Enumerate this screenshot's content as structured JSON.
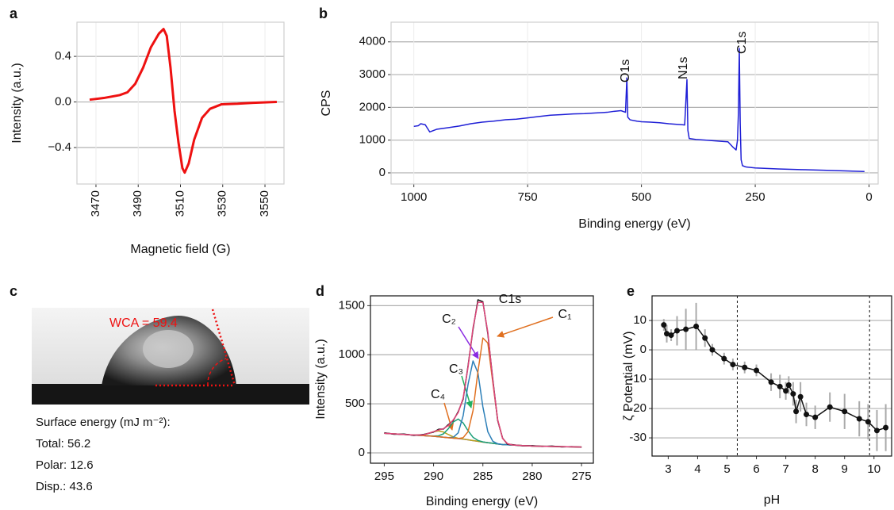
{
  "chart_data": [
    {
      "type": "line",
      "panel": "a",
      "y_label": "Intensity (a.u.)",
      "x_label": "Magnetic field (G)",
      "x": [
        3467.0,
        3473.7,
        3481.2,
        3484.9,
        3488.6,
        3492.3,
        3496.0,
        3499.8,
        3502.0,
        3503.5,
        3505.3,
        3507.2,
        3509.1,
        3510.9,
        3512.0,
        3513.9,
        3516.5,
        3520.2,
        3524.0,
        3529.5,
        3537.0,
        3544.4,
        3555.6
      ],
      "series": [
        {
          "color": "#ee1111",
          "values": [
            0.02,
            0.035,
            0.06,
            0.085,
            0.16,
            0.3,
            0.48,
            0.6,
            0.64,
            0.58,
            0.3,
            -0.08,
            -0.36,
            -0.58,
            -0.62,
            -0.54,
            -0.33,
            -0.14,
            -0.06,
            -0.02,
            -0.015,
            -0.007,
            0
          ]
        }
      ],
      "xlim": [
        3461,
        3559
      ],
      "xticks": [
        3470,
        3490,
        3510,
        3530,
        3550
      ],
      "xtick_rotation": 90,
      "ylim": [
        -0.72,
        0.7
      ],
      "yticks": [
        {
          "value": -0.4,
          "label": "−0.4"
        },
        {
          "value": 0,
          "label": "0.0"
        },
        0.4
      ],
      "grid": "both"
    },
    {
      "type": "line",
      "panel": "b",
      "y_label": "CPS",
      "x_label": "Binding energy (eV)",
      "x": [
        1000,
        990,
        985,
        975,
        965,
        950,
        925,
        900,
        875,
        850,
        825,
        800,
        775,
        750,
        725,
        700,
        675,
        650,
        625,
        600,
        575,
        560,
        545,
        535,
        532,
        530,
        525,
        510,
        500,
        480,
        460,
        440,
        420,
        410,
        405,
        400,
        398,
        395,
        380,
        360,
        340,
        320,
        310,
        300,
        292,
        289,
        287,
        285,
        283,
        281,
        278,
        270,
        250,
        200,
        150,
        100,
        50,
        10
      ],
      "series": [
        {
          "color": "#1f1fd6",
          "values": [
            1420,
            1440,
            1500,
            1470,
            1250,
            1330,
            1380,
            1430,
            1500,
            1550,
            1580,
            1620,
            1640,
            1680,
            1720,
            1760,
            1780,
            1800,
            1810,
            1830,
            1850,
            1880,
            1900,
            1850,
            2900,
            1700,
            1620,
            1580,
            1560,
            1550,
            1530,
            1500,
            1480,
            1470,
            1460,
            2850,
            1300,
            1050,
            1020,
            1000,
            980,
            960,
            950,
            800,
            700,
            1000,
            1800,
            3800,
            1500,
            400,
            220,
            180,
            150,
            120,
            100,
            80,
            60,
            40
          ]
        }
      ],
      "annotations": [
        "O1s",
        "N1s",
        "C1s"
      ],
      "xlim": [
        1050,
        -20
      ],
      "xticks": [
        1000,
        750,
        500,
        250,
        0
      ],
      "ylim": [
        -340,
        4600
      ],
      "yticks": [
        0,
        1000,
        2000,
        3000,
        4000
      ],
      "grid": "both"
    },
    {
      "type": "line",
      "panel": "d",
      "y_label": "Intensity (a.u.)",
      "x_label": "Binding energy (eV)",
      "x": [
        295,
        294,
        293,
        292,
        291,
        290,
        289.5,
        289,
        288.5,
        288,
        287.5,
        287,
        286.5,
        286,
        285.5,
        285,
        284.5,
        284,
        283.5,
        283,
        282.5,
        282,
        281,
        280,
        279,
        278,
        277,
        276,
        275
      ],
      "series": [
        {
          "color": "#8b3fc9",
          "values": [
            200,
            194,
            188,
            182,
            176,
            170,
            165,
            160,
            155,
            150,
            145,
            140,
            133,
            125,
            118,
            110,
            104,
            98,
            91,
            85,
            83,
            80,
            75,
            70,
            68,
            66,
            64,
            62,
            60
          ]
        },
        {
          "name": "C₄",
          "color": "#b8a21c",
          "values": [
            200,
            194,
            188,
            182,
            184,
            215,
            224,
            213,
            187,
            163,
            149,
            141,
            133,
            125,
            118,
            110,
            104,
            98,
            91,
            85,
            83,
            80,
            75,
            70,
            68,
            66,
            64,
            62,
            60
          ]
        },
        {
          "name": "C₃",
          "color": "#1a9e77",
          "values": [
            200,
            194,
            188,
            182,
            176,
            172,
            174,
            194,
            247,
            315,
            345,
            305,
            225,
            159,
            127,
            112,
            104,
            98,
            91,
            85,
            83,
            80,
            75,
            70,
            68,
            66,
            64,
            62,
            60
          ]
        },
        {
          "name": "C₂",
          "color": "#2c7fb8",
          "values": [
            200,
            194,
            188,
            182,
            176,
            170,
            165,
            160,
            156,
            159,
            205,
            379,
            701,
            937,
            814,
            469,
            215,
            119,
            93,
            85,
            83,
            80,
            75,
            70,
            68,
            66,
            64,
            62,
            60
          ]
        },
        {
          "name": "C₁",
          "color": "#e07020",
          "values": [
            200,
            194,
            188,
            182,
            176,
            170,
            165,
            160,
            155,
            150,
            147,
            155,
            217,
            431,
            830,
            1171,
            1119,
            721,
            336,
            147,
            93,
            81,
            75,
            70,
            68,
            66,
            64,
            62,
            60
          ]
        },
        {
          "color": "#111111",
          "values": [
            205,
            190,
            192,
            178,
            188,
            212,
            240,
            243,
            288,
            330,
            420,
            548,
            890,
            1260,
            1560,
            1540,
            1215,
            755,
            330,
            150,
            88,
            84,
            72,
            74,
            66,
            70,
            61,
            64,
            58
          ]
        },
        {
          "color": "#e0457b",
          "values": [
            200,
            194,
            188,
            182,
            184,
            217,
            233,
            247,
            280,
            337,
            411,
            560,
            877,
            1277,
            1535,
            1532,
            1230,
            742,
            338,
            147,
            93,
            81,
            75,
            70,
            68,
            66,
            64,
            62,
            60
          ]
        }
      ],
      "annotations": [
        "C1s"
      ],
      "xlim": [
        296.4,
        273.8
      ],
      "xticks": [
        295,
        290,
        285,
        280,
        275
      ],
      "ylim": [
        -105,
        1600
      ],
      "yticks": [
        0,
        500,
        1000,
        1500
      ],
      "grid": "y"
    },
    {
      "type": "line",
      "panel": "e",
      "y_label": "ζ Potential (mV)",
      "x_label": "pH",
      "markers": true,
      "x": [
        2.85,
        2.95,
        3.1,
        3.3,
        3.6,
        3.95,
        4.25,
        4.5,
        4.9,
        5.2,
        5.6,
        6.0,
        6.5,
        6.8,
        7.0,
        7.1,
        7.25,
        7.35,
        7.5,
        7.7,
        8.0,
        8.5,
        9.0,
        9.5,
        9.8,
        10.1,
        10.4
      ],
      "series": [
        {
          "color": "#111111",
          "values": [
            8.5,
            5.5,
            5,
            6.5,
            7,
            8,
            4,
            0,
            -3,
            -5,
            -6,
            -7,
            -11,
            -12.5,
            -14,
            -12,
            -15,
            -21,
            -16,
            -22,
            -23,
            -19.5,
            -21,
            -23.5,
            -24.5,
            -27.5,
            -26.5
          ],
          "errors": [
            2,
            3,
            2,
            5,
            7,
            8,
            3,
            2,
            2,
            2,
            2,
            2,
            3,
            4,
            3,
            3,
            4,
            4,
            5,
            4,
            4,
            5,
            6,
            6,
            6,
            7,
            8
          ],
          "error_color": "#aaaaaa"
        }
      ],
      "vlines": [
        5.35,
        9.85
      ],
      "xlim": [
        2.45,
        10.6
      ],
      "xticks": [
        3,
        4,
        5,
        6,
        7,
        8,
        9,
        10
      ],
      "ylim": [
        -36.2,
        18.4
      ],
      "yticks": [
        -30,
        -20,
        -10,
        0,
        10
      ],
      "grid": "y"
    }
  ],
  "photo": {
    "panel": "c",
    "wca": "WCA = 59.4",
    "heading": "Surface energy (mJ m⁻²):",
    "lines": [
      "Total: 56.2",
      "Polar: 12.6",
      "Disp.: 43.6"
    ]
  }
}
